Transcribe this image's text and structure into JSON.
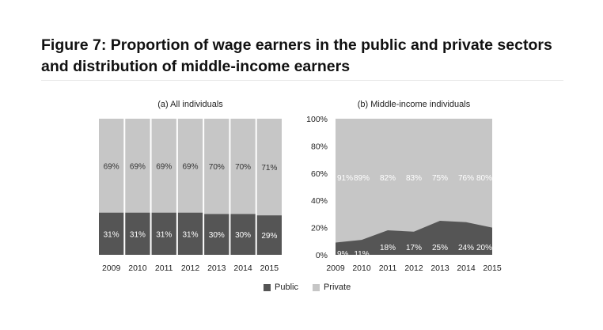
{
  "title": "Figure 7: Proportion of wage earners in the public and private sectors and distribution of middle-income earners",
  "colors": {
    "public": "#555555",
    "private": "#c6c6c6"
  },
  "legend": {
    "public": "Public",
    "private": "Private"
  },
  "chart_data": [
    {
      "type": "bar",
      "stacked": true,
      "title": "(a) All individuals",
      "categories": [
        "2009",
        "2010",
        "2011",
        "2012",
        "2013",
        "2014",
        "2015"
      ],
      "series": [
        {
          "name": "Public",
          "values": [
            31,
            31,
            31,
            31,
            30,
            30,
            29
          ],
          "labels": [
            "31%",
            "31%",
            "31%",
            "31%",
            "30%",
            "30%",
            "29%"
          ]
        },
        {
          "name": "Private",
          "values": [
            69,
            69,
            69,
            69,
            70,
            70,
            71
          ],
          "labels": [
            "69%",
            "69%",
            "69%",
            "69%",
            "70%",
            "70%",
            "71%"
          ]
        }
      ],
      "ylim": [
        0,
        100
      ]
    },
    {
      "type": "area",
      "stacked": true,
      "title": "(b) Middle-income individuals",
      "categories": [
        "2009",
        "2010",
        "2011",
        "2012",
        "2013",
        "2014",
        "2015"
      ],
      "series": [
        {
          "name": "Public",
          "values": [
            9,
            11,
            18,
            17,
            25,
            24,
            20
          ],
          "labels": [
            "9%",
            "11%",
            "18%",
            "17%",
            "25%",
            "24%",
            "20%"
          ]
        },
        {
          "name": "Private",
          "values": [
            91,
            89,
            82,
            83,
            75,
            76,
            80
          ],
          "labels": [
            "91%",
            "89%",
            "82%",
            "83%",
            "75%",
            "76%",
            "80%"
          ]
        }
      ],
      "ylim": [
        0,
        100
      ],
      "yticks": [
        "0%",
        "20%",
        "40%",
        "60%",
        "80%",
        "100%"
      ]
    }
  ]
}
